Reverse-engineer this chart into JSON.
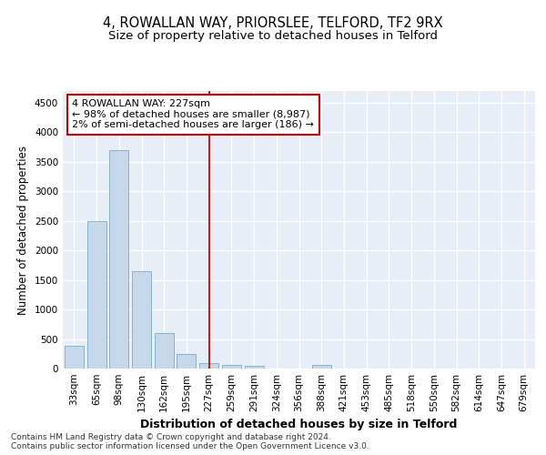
{
  "title1": "4, ROWALLAN WAY, PRIORSLEE, TELFORD, TF2 9RX",
  "title2": "Size of property relative to detached houses in Telford",
  "xlabel": "Distribution of detached houses by size in Telford",
  "ylabel": "Number of detached properties",
  "categories": [
    "33sqm",
    "65sqm",
    "98sqm",
    "130sqm",
    "162sqm",
    "195sqm",
    "227sqm",
    "259sqm",
    "291sqm",
    "324sqm",
    "356sqm",
    "388sqm",
    "421sqm",
    "453sqm",
    "485sqm",
    "518sqm",
    "550sqm",
    "582sqm",
    "614sqm",
    "647sqm",
    "679sqm"
  ],
  "values": [
    380,
    2500,
    3700,
    1650,
    600,
    250,
    100,
    60,
    50,
    0,
    0,
    60,
    0,
    0,
    0,
    0,
    0,
    0,
    0,
    0,
    0
  ],
  "bar_color": "#c8d8eb",
  "bar_edge_color": "#7aaac8",
  "vline_x_index": 6,
  "vline_color": "#cc0000",
  "annotation_text": "4 ROWALLAN WAY: 227sqm\n← 98% of detached houses are smaller (8,987)\n2% of semi-detached houses are larger (186) →",
  "annotation_box_color": "#ffffff",
  "annotation_box_edge_color": "#cc0000",
  "ylim": [
    0,
    4700
  ],
  "yticks": [
    0,
    500,
    1000,
    1500,
    2000,
    2500,
    3000,
    3500,
    4000,
    4500
  ],
  "bg_color": "#e8eef8",
  "grid_color": "#ffffff",
  "footer": "Contains HM Land Registry data © Crown copyright and database right 2024.\nContains public sector information licensed under the Open Government Licence v3.0.",
  "title1_fontsize": 10.5,
  "title2_fontsize": 9.5,
  "xlabel_fontsize": 9,
  "ylabel_fontsize": 8.5,
  "tick_fontsize": 7.5,
  "annot_fontsize": 8,
  "footer_fontsize": 6.5
}
